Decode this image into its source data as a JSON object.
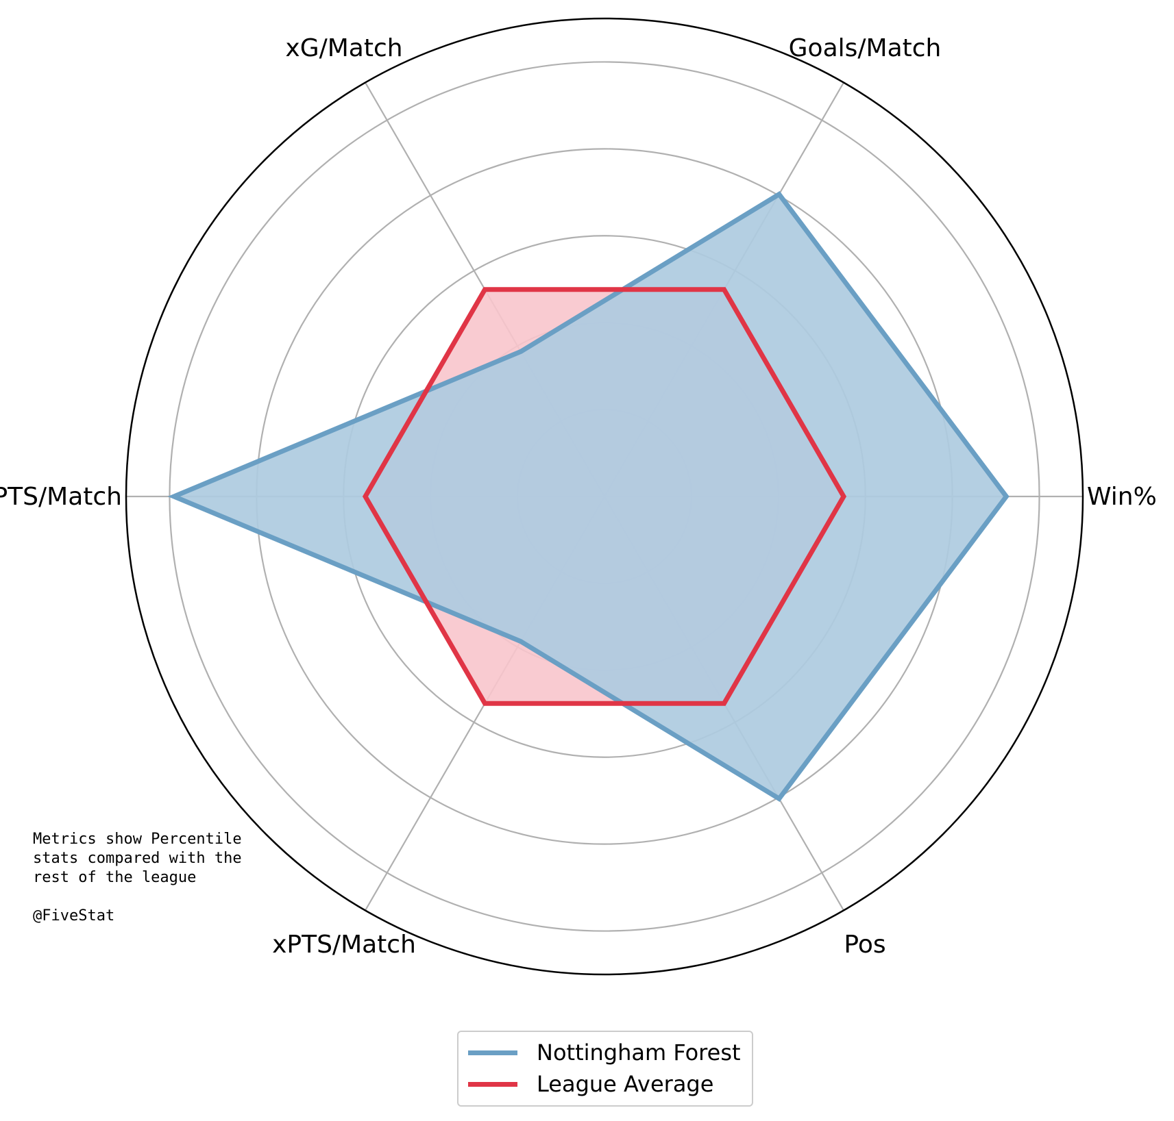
{
  "chart_data": {
    "type": "radar",
    "axes": [
      "Win%",
      "Goals/Match",
      "xG/Match",
      "PTS/Match",
      "xPTS/Match",
      "Pos"
    ],
    "rlim": [
      0,
      100
    ],
    "grid": true,
    "series": [
      {
        "name": "Nottingham Forest",
        "color": "#6a9fc4",
        "fill": "#c7dceb",
        "values": [
          84,
          73,
          35,
          90,
          35,
          73
        ]
      },
      {
        "name": "League Average",
        "color": "#e03546",
        "fill": "#f8c5cc",
        "values": [
          50,
          50,
          50,
          50,
          50,
          50
        ]
      }
    ],
    "legend_position": "bottom-center"
  },
  "note": {
    "lines": [
      "Metrics show Percentile",
      "stats compared with the",
      "rest of the league",
      "",
      "@FiveStat"
    ]
  },
  "legend": {
    "items": [
      {
        "label": "Nottingham Forest",
        "color": "#6a9fc4"
      },
      {
        "label": "League Average",
        "color": "#e03546"
      }
    ]
  }
}
